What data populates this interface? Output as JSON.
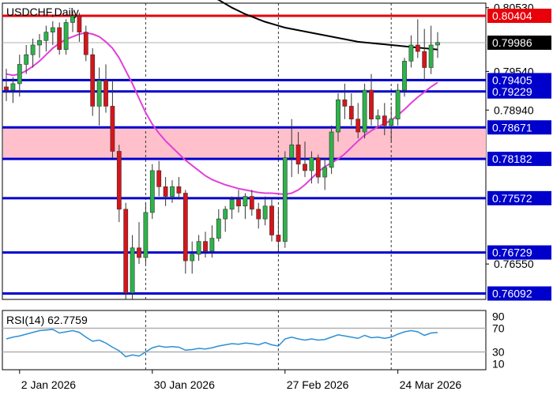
{
  "chart_data": {
    "type": "candlestick",
    "title": "USDCHF,Daily",
    "y_ticks": [
      0.8053,
      0.7954,
      0.7894,
      0.7655
    ],
    "x_labels": [
      {
        "label": "2 Jan 2026",
        "date": "2026-01-02"
      },
      {
        "label": "30 Jan 2026",
        "date": "2026-01-30"
      },
      {
        "label": "27 Feb 2026",
        "date": "2026-02-27"
      },
      {
        "label": "24 Mar 2026",
        "date": "2026-03-24"
      }
    ],
    "dates": [
      "2025-12-31",
      "2026-01-01",
      "2026-01-02",
      "2026-01-05",
      "2026-01-06",
      "2026-01-07",
      "2026-01-08",
      "2026-01-09",
      "2026-01-12",
      "2026-01-13",
      "2026-01-14",
      "2026-01-15",
      "2026-01-16",
      "2026-01-19",
      "2026-01-20",
      "2026-01-21",
      "2026-01-22",
      "2026-01-23",
      "2026-01-26",
      "2026-01-27",
      "2026-01-28",
      "2026-01-29",
      "2026-01-30",
      "2026-02-02",
      "2026-02-03",
      "2026-02-04",
      "2026-02-05",
      "2026-02-06",
      "2026-02-09",
      "2026-02-10",
      "2026-02-11",
      "2026-02-12",
      "2026-02-13",
      "2026-02-16",
      "2026-02-17",
      "2026-02-18",
      "2026-02-19",
      "2026-02-20",
      "2026-02-23",
      "2026-02-24",
      "2026-02-25",
      "2026-02-26",
      "2026-02-27",
      "2026-03-02",
      "2026-03-03",
      "2026-03-04",
      "2026-03-05",
      "2026-03-06",
      "2026-03-09",
      "2026-03-10",
      "2026-03-11",
      "2026-03-12",
      "2026-03-13",
      "2026-03-16",
      "2026-03-17",
      "2026-03-18",
      "2026-03-19",
      "2026-03-20",
      "2026-03-23",
      "2026-03-24",
      "2026-03-25",
      "2026-03-26",
      "2026-03-27",
      "2026-03-30",
      "2026-03-31",
      "2026-04-01"
    ],
    "ohlc": [
      [
        0.793,
        0.7958,
        0.7908,
        0.7925
      ],
      [
        0.7925,
        0.7945,
        0.7905,
        0.7935
      ],
      [
        0.7935,
        0.798,
        0.7915,
        0.7965
      ],
      [
        0.7965,
        0.7995,
        0.795,
        0.798
      ],
      [
        0.798,
        0.8005,
        0.796,
        0.7995
      ],
      [
        0.7995,
        0.8012,
        0.7975,
        0.8002
      ],
      [
        0.8002,
        0.8025,
        0.7985,
        0.8015
      ],
      [
        0.8015,
        0.8032,
        0.7995,
        0.8022
      ],
      [
        0.8022,
        0.803,
        0.798,
        0.7988
      ],
      [
        0.7988,
        0.8035,
        0.798,
        0.803
      ],
      [
        0.803,
        0.8048,
        0.8015,
        0.804
      ],
      [
        0.804,
        0.8045,
        0.8,
        0.8015
      ],
      [
        0.8015,
        0.8025,
        0.797,
        0.798
      ],
      [
        0.798,
        0.799,
        0.7885,
        0.79
      ],
      [
        0.79,
        0.796,
        0.787,
        0.794
      ],
      [
        0.794,
        0.7965,
        0.789,
        0.79
      ],
      [
        0.79,
        0.794,
        0.782,
        0.783
      ],
      [
        0.783,
        0.784,
        0.772,
        0.774
      ],
      [
        0.774,
        0.775,
        0.76,
        0.761
      ],
      [
        0.761,
        0.77,
        0.76,
        0.768
      ],
      [
        0.768,
        0.772,
        0.7655,
        0.7665
      ],
      [
        0.7665,
        0.775,
        0.7655,
        0.7735
      ],
      [
        0.7735,
        0.781,
        0.7725,
        0.78
      ],
      [
        0.78,
        0.7815,
        0.776,
        0.7775
      ],
      [
        0.7775,
        0.779,
        0.7745,
        0.776
      ],
      [
        0.776,
        0.7785,
        0.775,
        0.7775
      ],
      [
        0.7775,
        0.779,
        0.7755,
        0.7765
      ],
      [
        0.7765,
        0.777,
        0.764,
        0.766
      ],
      [
        0.766,
        0.769,
        0.764,
        0.767
      ],
      [
        0.767,
        0.77,
        0.766,
        0.769
      ],
      [
        0.769,
        0.7705,
        0.7665,
        0.7675
      ],
      [
        0.7675,
        0.7715,
        0.7665,
        0.7695
      ],
      [
        0.7695,
        0.774,
        0.769,
        0.7725
      ],
      [
        0.7725,
        0.7745,
        0.7705,
        0.774
      ],
      [
        0.774,
        0.776,
        0.7725,
        0.7755
      ],
      [
        0.7755,
        0.777,
        0.7735,
        0.7745
      ],
      [
        0.7745,
        0.7765,
        0.7725,
        0.776
      ],
      [
        0.776,
        0.777,
        0.773,
        0.774
      ],
      [
        0.774,
        0.775,
        0.771,
        0.7725
      ],
      [
        0.7725,
        0.776,
        0.7715,
        0.7745
      ],
      [
        0.7745,
        0.7755,
        0.769,
        0.77
      ],
      [
        0.77,
        0.774,
        0.7675,
        0.769
      ],
      [
        0.769,
        0.783,
        0.768,
        0.782
      ],
      [
        0.782,
        0.788,
        0.779,
        0.784
      ],
      [
        0.784,
        0.786,
        0.7795,
        0.781
      ],
      [
        0.781,
        0.7845,
        0.779,
        0.78
      ],
      [
        0.78,
        0.783,
        0.778,
        0.782
      ],
      [
        0.782,
        0.7825,
        0.778,
        0.779
      ],
      [
        0.779,
        0.782,
        0.777,
        0.7805
      ],
      [
        0.7805,
        0.787,
        0.7795,
        0.786
      ],
      [
        0.786,
        0.792,
        0.7845,
        0.791
      ],
      [
        0.791,
        0.7935,
        0.788,
        0.79
      ],
      [
        0.79,
        0.792,
        0.787,
        0.788
      ],
      [
        0.788,
        0.7905,
        0.785,
        0.786
      ],
      [
        0.786,
        0.7935,
        0.785,
        0.7925
      ],
      [
        0.7925,
        0.795,
        0.787,
        0.788
      ],
      [
        0.788,
        0.7895,
        0.7865,
        0.7885
      ],
      [
        0.7885,
        0.7905,
        0.7855,
        0.787
      ],
      [
        0.787,
        0.79,
        0.7845,
        0.788
      ],
      [
        0.788,
        0.7935,
        0.787,
        0.7925
      ],
      [
        0.7925,
        0.7975,
        0.7915,
        0.797
      ],
      [
        0.797,
        0.801,
        0.796,
        0.7995
      ],
      [
        0.7995,
        0.8035,
        0.7975,
        0.7985
      ],
      [
        0.7985,
        0.802,
        0.794,
        0.796
      ],
      [
        0.796,
        0.8025,
        0.795,
        0.7995
      ],
      [
        0.7995,
        0.8015,
        0.7975,
        0.7999
      ]
    ],
    "sma_long": [
      0.812,
      0.811,
      0.81,
      0.8092,
      0.8085,
      0.8078,
      0.8071,
      0.8065,
      0.8059,
      0.8053,
      0.8048,
      0.8043,
      0.8039,
      0.8035,
      0.8031,
      0.8028,
      0.8025,
      0.8022,
      0.802,
      0.8018,
      0.8016,
      0.8014,
      0.8012,
      0.801,
      0.8008,
      0.8006,
      0.8004,
      0.8002,
      0.8,
      0.7999,
      0.7998,
      0.7997,
      0.7996,
      0.7995,
      0.7994,
      0.7993,
      0.7992,
      0.7991,
      0.799,
      0.7989,
      0.7988
    ],
    "sma_short": [
      0.795,
      0.7948,
      0.795,
      0.7955,
      0.7962,
      0.797,
      0.798,
      0.799,
      0.7998,
      0.8004,
      0.8008,
      0.8012,
      0.8014,
      0.8012,
      0.8008,
      0.8,
      0.799,
      0.7975,
      0.7955,
      0.7935,
      0.7912,
      0.789,
      0.7872,
      0.7858,
      0.7846,
      0.7836,
      0.7826,
      0.7816,
      0.7808,
      0.78,
      0.7792,
      0.7786,
      0.7782,
      0.7778,
      0.7775,
      0.7772,
      0.777,
      0.7768,
      0.7766,
      0.7765,
      0.7765,
      0.7764,
      0.7763,
      0.7765,
      0.777,
      0.7778,
      0.7788,
      0.7798,
      0.7806,
      0.7812,
      0.7818,
      0.7826,
      0.7836,
      0.7846,
      0.7855,
      0.7862,
      0.7868,
      0.7873,
      0.7878,
      0.7886,
      0.7895,
      0.7905,
      0.7914,
      0.7922,
      0.793,
      0.7937
    ],
    "levels": [
      {
        "value": 0.80404,
        "label": "0.80404",
        "color": "#e8000a",
        "kind": "resistance"
      },
      {
        "value": 0.79405,
        "label": "0.79405",
        "color": "#0000cc",
        "kind": "level"
      },
      {
        "value": 0.79229,
        "label": "0.79229",
        "color": "#0000cc",
        "kind": "level"
      },
      {
        "value": 0.78671,
        "label": "0.78671",
        "color": "#0000cc",
        "kind": "level"
      },
      {
        "value": 0.78182,
        "label": "0.78182",
        "color": "#0000cc",
        "kind": "level"
      },
      {
        "value": 0.77572,
        "label": "0.77572",
        "color": "#0000cc",
        "kind": "level"
      },
      {
        "value": 0.76729,
        "label": "0.76729",
        "color": "#0000cc",
        "kind": "level"
      },
      {
        "value": 0.76092,
        "label": "0.76092",
        "color": "#0000cc",
        "kind": "level"
      }
    ],
    "zone": {
      "from": 0.78182,
      "to": 0.78671,
      "color": "#ffc0cb"
    },
    "current_price": {
      "value": 0.79986,
      "label": "0.79986"
    },
    "vlines": [
      "2026-01-29",
      "2026-02-26",
      "2026-03-23"
    ],
    "ylim": [
      0.76,
      0.806
    ],
    "rsi": {
      "label": "RSI(14) 62.7759",
      "levels": [
        70,
        30
      ],
      "axis_ticks": [
        90,
        10
      ],
      "ylim": [
        0,
        100
      ],
      "values": [
        52,
        55,
        57,
        60,
        63,
        66,
        67,
        68,
        62,
        64,
        66,
        63,
        55,
        48,
        50,
        45,
        38,
        32,
        22,
        25,
        23,
        30,
        37,
        40,
        38,
        39,
        38,
        33,
        34,
        36,
        35,
        37,
        40,
        42,
        44,
        43,
        45,
        44,
        42,
        46,
        42,
        40,
        52,
        55,
        52,
        50,
        52,
        50,
        51,
        55,
        59,
        57,
        55,
        53,
        58,
        54,
        55,
        53,
        55,
        60,
        64,
        66,
        64,
        58,
        62,
        62.78
      ]
    },
    "colors": {
      "bull": "#2db34a",
      "bear": "#d8141b",
      "sma_long": "#000000",
      "sma_short": "#e23fd8",
      "rsi_line": "#2b8fd6"
    }
  }
}
